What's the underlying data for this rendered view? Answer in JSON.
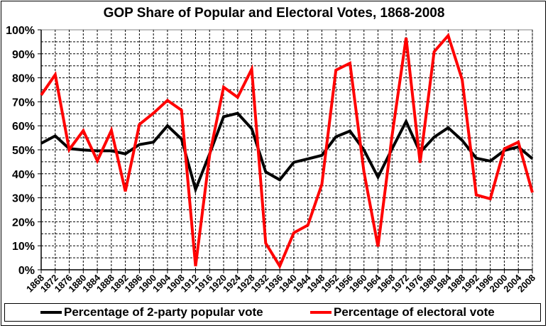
{
  "chart_data": {
    "type": "line",
    "title": "GOP Share of Popular and Electoral Votes, 1868-2008",
    "xlabel": "",
    "ylabel": "",
    "ylim": [
      0,
      100
    ],
    "grid": true,
    "legend_position": "bottom",
    "y_ticks": [
      "0%",
      "10%",
      "20%",
      "30%",
      "40%",
      "50%",
      "60%",
      "70%",
      "80%",
      "90%",
      "100%"
    ],
    "x": [
      "1868",
      "1872",
      "1876",
      "1880",
      "1884",
      "1888",
      "1892",
      "1896",
      "1900",
      "1904",
      "1908",
      "1912",
      "1916",
      "1920",
      "1924",
      "1928",
      "1932",
      "1936",
      "1940",
      "1944",
      "1948",
      "1952",
      "1956",
      "1960",
      "1964",
      "1968",
      "1972",
      "1976",
      "1980",
      "1984",
      "1988",
      "1992",
      "1996",
      "2000",
      "2004",
      "2008"
    ],
    "series": [
      {
        "name": "Percentage of 2-party popular vote",
        "color": "#000000",
        "values": [
          52.7,
          55.8,
          50.5,
          49.9,
          49.6,
          49.6,
          48.3,
          52.2,
          53.2,
          60.0,
          54.5,
          33.5,
          48.3,
          63.8,
          65.2,
          58.8,
          40.8,
          37.5,
          44.8,
          46.2,
          47.7,
          55.4,
          57.8,
          49.9,
          38.6,
          50.4,
          61.8,
          48.9,
          55.3,
          59.2,
          53.9,
          46.5,
          45.3,
          49.7,
          51.2,
          46.3
        ]
      },
      {
        "name": "Percentage of electoral vote",
        "color": "#ff0000",
        "values": [
          72.8,
          81.3,
          50.1,
          58.0,
          45.4,
          58.1,
          32.7,
          60.6,
          65.3,
          70.6,
          66.5,
          1.5,
          47.8,
          76.1,
          71.9,
          83.6,
          11.1,
          1.5,
          15.4,
          18.6,
          35.6,
          83.2,
          86.1,
          40.8,
          9.7,
          55.9,
          96.7,
          44.6,
          90.9,
          97.6,
          79.2,
          31.2,
          29.6,
          50.4,
          53.2,
          32.2
        ]
      }
    ]
  },
  "legend": {
    "popular_label": "Percentage of 2-party popular vote",
    "electoral_label": "Percentage of electoral vote"
  }
}
